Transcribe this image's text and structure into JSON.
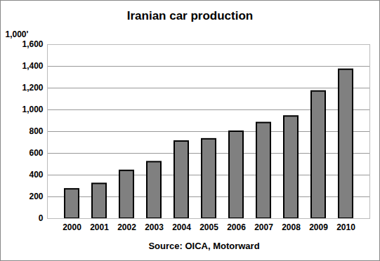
{
  "chart_data": {
    "type": "bar",
    "title": "Iranian car production",
    "y_label": "1,000'",
    "caption": "Source: OICA, Motorward",
    "categories": [
      "2000",
      "2001",
      "2002",
      "2003",
      "2004",
      "2005",
      "2006",
      "2007",
      "2008",
      "2009",
      "2010"
    ],
    "values": [
      270,
      320,
      440,
      520,
      710,
      730,
      800,
      880,
      940,
      1170,
      1370
    ],
    "color": "#808080",
    "ylim": [
      0,
      1600
    ],
    "yticks": [
      0,
      200,
      400,
      600,
      800,
      {
        "value": 1000,
        "label": "1,000"
      },
      {
        "value": 1200,
        "label": "1,200"
      },
      {
        "value": 1400,
        "label": "1,400"
      },
      {
        "value": 1600,
        "label": "1,600"
      }
    ],
    "grid": true
  }
}
